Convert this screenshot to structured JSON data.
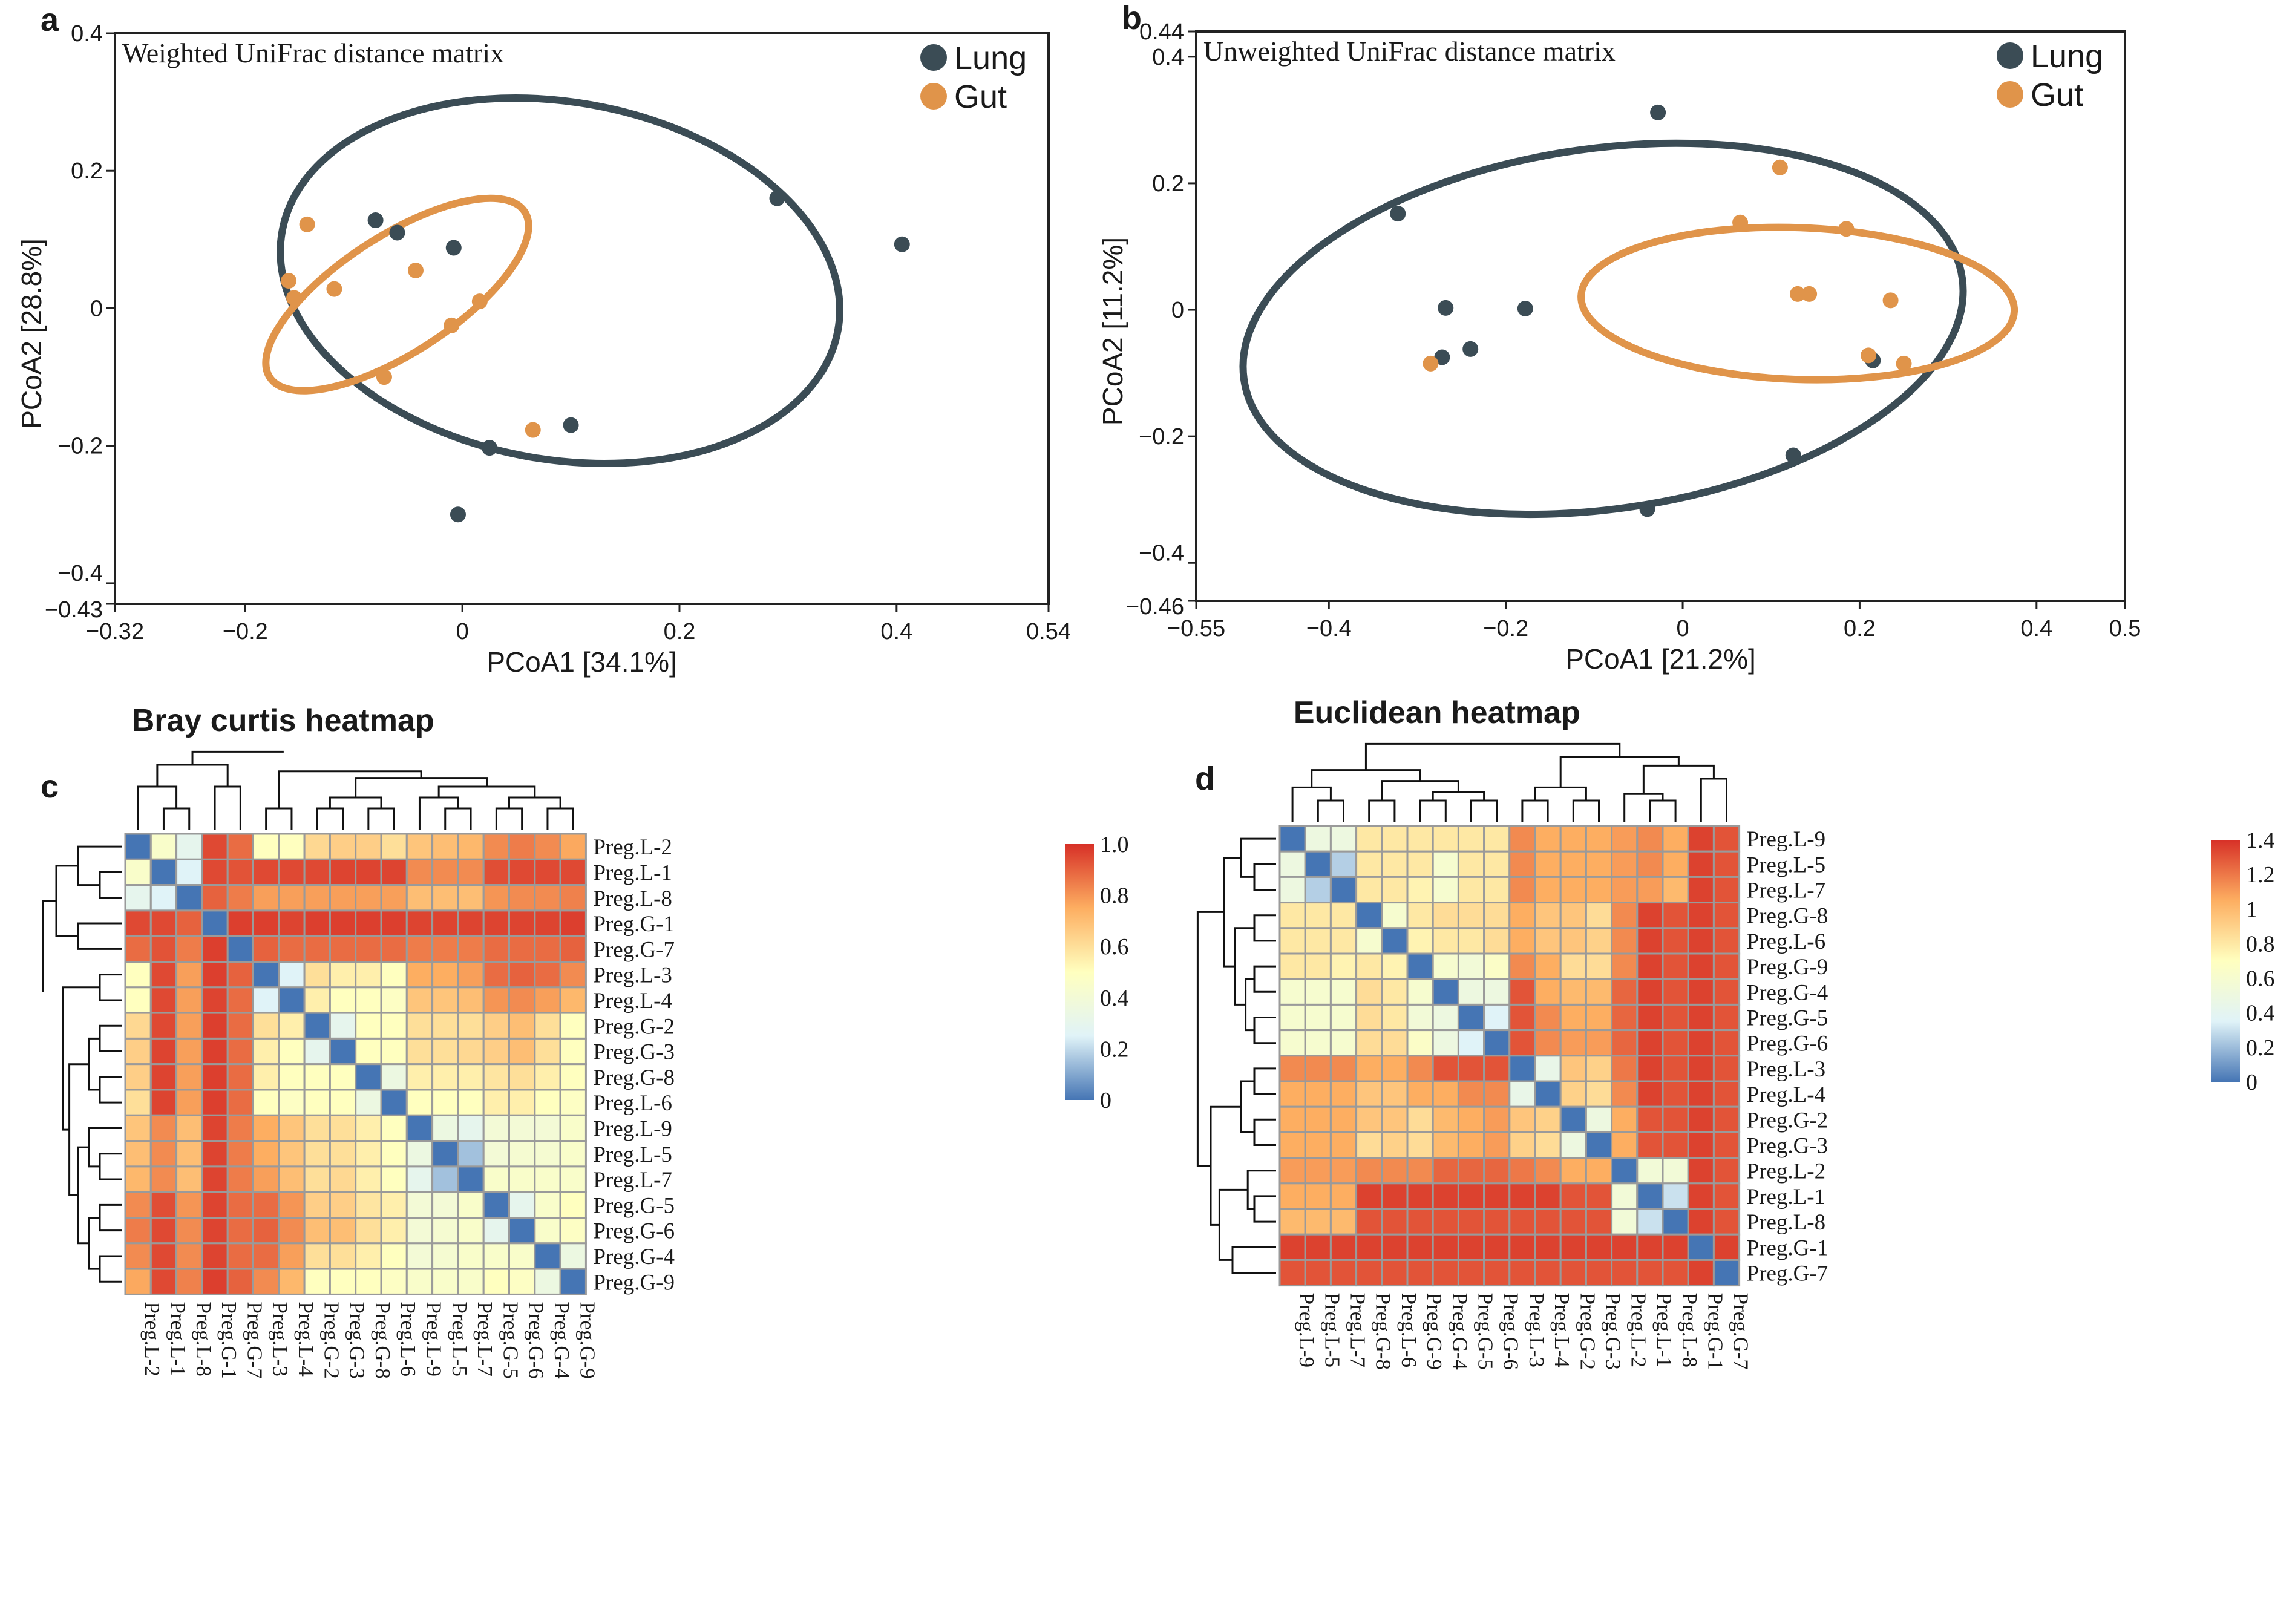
{
  "colors": {
    "lung": "#3b4c55",
    "gut": "#e0944a",
    "grid_line": "#9a9a9a",
    "scale": [
      "#4575b4",
      "#e0f3f8",
      "#ffffbf",
      "#fdae61",
      "#d73027"
    ]
  },
  "chart_data": [
    {
      "id": "a",
      "type": "scatter",
      "panel_letter": "a",
      "title": "Weighted UniFrac distance matrix",
      "xlabel": "PCoA1 [34.1%]",
      "ylabel": "PCoA2 [28.8%]",
      "xlim": [
        -0.32,
        0.54
      ],
      "ylim": [
        -0.43,
        0.4
      ],
      "xticks": [
        -0.2,
        0,
        0.2,
        0.4
      ],
      "yticks": [
        -0.4,
        -0.2,
        0,
        0.2
      ],
      "xtick_labels": [
        "−0.32",
        "−0.2",
        "0",
        "0.2",
        "0.4",
        "0.54"
      ],
      "ytick_labels": [
        "−0.43",
        "−0.4",
        "−0.2",
        "0",
        "0.2",
        "0.4"
      ],
      "legend": [
        "Lung",
        "Gut"
      ],
      "series": [
        {
          "name": "Lung",
          "points": [
            [
              -0.08,
              0.128
            ],
            [
              -0.06,
              0.11
            ],
            [
              -0.008,
              0.088
            ],
            [
              0.29,
              0.16
            ],
            [
              0.405,
              0.093
            ],
            [
              0.1,
              -0.17
            ],
            [
              0.025,
              -0.203
            ],
            [
              -0.004,
              -0.3
            ]
          ]
        },
        {
          "name": "Gut",
          "points": [
            [
              -0.143,
              0.122
            ],
            [
              -0.16,
              0.04
            ],
            [
              -0.155,
              0.015
            ],
            [
              -0.118,
              0.028
            ],
            [
              -0.043,
              0.055
            ],
            [
              0.016,
              0.01
            ],
            [
              -0.01,
              -0.025
            ],
            [
              -0.072,
              -0.1
            ],
            [
              0.065,
              -0.177
            ]
          ]
        }
      ],
      "ellipses": [
        {
          "name": "Lung",
          "cx": 0.09,
          "cy": 0.04,
          "rx": 0.26,
          "ry": 0.26,
          "angle": 10
        },
        {
          "name": "Gut",
          "cx": -0.06,
          "cy": 0.02,
          "rx": 0.14,
          "ry": 0.085,
          "angle": -33
        }
      ]
    },
    {
      "id": "b",
      "type": "scatter",
      "panel_letter": "b",
      "title": "Unweighted UniFrac distance matrix",
      "xlabel": "PCoA1 [21.2%]",
      "ylabel": "PCoA2 [11.2%]",
      "xlim": [
        -0.55,
        0.5
      ],
      "ylim": [
        -0.46,
        0.44
      ],
      "xticks": [
        -0.4,
        -0.2,
        0,
        0.2,
        0.4
      ],
      "yticks": [
        -0.4,
        -0.2,
        0,
        0.2,
        0.4
      ],
      "xtick_labels": [
        "−0.55",
        "−0.4",
        "−0.2",
        "0",
        "0.2",
        "0.4",
        "0.5"
      ],
      "ytick_labels": [
        "−0.46",
        "−0.4",
        "−0.2",
        "0",
        "0.2",
        "0.4",
        "0.44"
      ],
      "legend": [
        "Lung",
        "Gut"
      ],
      "series": [
        {
          "name": "Lung",
          "points": [
            [
              -0.028,
              0.312
            ],
            [
              -0.322,
              0.152
            ],
            [
              -0.268,
              0.003
            ],
            [
              -0.178,
              0.002
            ],
            [
              -0.24,
              -0.062
            ],
            [
              -0.272,
              -0.075
            ],
            [
              0.215,
              -0.08
            ],
            [
              0.125,
              -0.23
            ],
            [
              -0.04,
              -0.315
            ]
          ]
        },
        {
          "name": "Gut",
          "points": [
            [
              0.11,
              0.225
            ],
            [
              0.065,
              0.138
            ],
            [
              0.185,
              0.128
            ],
            [
              0.13,
              0.025
            ],
            [
              0.143,
              0.025
            ],
            [
              0.235,
              0.015
            ],
            [
              0.21,
              -0.072
            ],
            [
              0.25,
              -0.085
            ],
            [
              -0.285,
              -0.085
            ]
          ]
        }
      ],
      "ellipses": [
        {
          "name": "Lung",
          "cx": -0.09,
          "cy": -0.03,
          "rx": 0.41,
          "ry": 0.285,
          "angle": -8
        },
        {
          "name": "Gut",
          "cx": 0.13,
          "cy": 0.01,
          "rx": 0.245,
          "ry": 0.12,
          "angle": 2
        }
      ]
    },
    {
      "id": "c",
      "type": "heatmap",
      "panel_letter": "c",
      "title": "Bray curtis heatmap",
      "labels": [
        "Preg.L-2",
        "Preg.L-1",
        "Preg.L-8",
        "Preg.G-1",
        "Preg.G-7",
        "Preg.L-3",
        "Preg.L-4",
        "Preg.G-2",
        "Preg.G-3",
        "Preg.G-8",
        "Preg.L-6",
        "Preg.L-9",
        "Preg.L-5",
        "Preg.L-7",
        "Preg.G-5",
        "Preg.G-6",
        "Preg.G-4",
        "Preg.G-9"
      ],
      "vmin": 0,
      "vmax": 1.0,
      "colorbar_ticks": [
        "1.0",
        "0.8",
        "0.6",
        "0.4",
        "0.2",
        "0"
      ],
      "colorbar_values": [
        1.0,
        0.8,
        0.6,
        0.4,
        0.2,
        0
      ],
      "values": [
        [
          0,
          0.45,
          0.3,
          0.95,
          0.88,
          0.5,
          0.5,
          0.62,
          0.65,
          0.65,
          0.6,
          0.68,
          0.7,
          0.72,
          0.82,
          0.85,
          0.82,
          0.76
        ],
        [
          0.45,
          0,
          0.25,
          0.95,
          0.93,
          0.95,
          0.95,
          0.95,
          0.96,
          0.96,
          0.96,
          0.82,
          0.82,
          0.82,
          0.94,
          0.95,
          0.95,
          0.95
        ],
        [
          0.3,
          0.25,
          0,
          0.9,
          0.85,
          0.78,
          0.78,
          0.78,
          0.78,
          0.78,
          0.78,
          0.7,
          0.7,
          0.7,
          0.8,
          0.82,
          0.82,
          0.84
        ],
        [
          0.95,
          0.95,
          0.9,
          0,
          0.97,
          0.97,
          0.96,
          0.97,
          0.97,
          0.97,
          0.97,
          0.96,
          0.96,
          0.96,
          0.96,
          0.96,
          0.96,
          0.97
        ],
        [
          0.88,
          0.93,
          0.85,
          0.97,
          0,
          0.9,
          0.88,
          0.88,
          0.88,
          0.88,
          0.88,
          0.85,
          0.85,
          0.85,
          0.88,
          0.88,
          0.88,
          0.9
        ],
        [
          0.5,
          0.95,
          0.78,
          0.97,
          0.9,
          0,
          0.25,
          0.6,
          0.55,
          0.55,
          0.5,
          0.75,
          0.75,
          0.78,
          0.88,
          0.9,
          0.88,
          0.82
        ],
        [
          0.5,
          0.95,
          0.78,
          0.96,
          0.88,
          0.25,
          0,
          0.55,
          0.5,
          0.5,
          0.48,
          0.68,
          0.68,
          0.7,
          0.8,
          0.82,
          0.78,
          0.72
        ],
        [
          0.62,
          0.95,
          0.78,
          0.97,
          0.88,
          0.6,
          0.55,
          0,
          0.3,
          0.5,
          0.5,
          0.6,
          0.6,
          0.6,
          0.65,
          0.7,
          0.6,
          0.5
        ],
        [
          0.65,
          0.96,
          0.78,
          0.97,
          0.88,
          0.55,
          0.5,
          0.3,
          0,
          0.5,
          0.5,
          0.6,
          0.6,
          0.62,
          0.65,
          0.7,
          0.6,
          0.5
        ],
        [
          0.65,
          0.96,
          0.78,
          0.97,
          0.88,
          0.55,
          0.5,
          0.5,
          0.5,
          0,
          0.35,
          0.55,
          0.55,
          0.55,
          0.58,
          0.6,
          0.55,
          0.5
        ],
        [
          0.6,
          0.96,
          0.78,
          0.97,
          0.88,
          0.5,
          0.48,
          0.5,
          0.5,
          0.35,
          0,
          0.5,
          0.5,
          0.5,
          0.55,
          0.55,
          0.5,
          0.48
        ],
        [
          0.68,
          0.82,
          0.7,
          0.96,
          0.85,
          0.75,
          0.68,
          0.6,
          0.6,
          0.55,
          0.5,
          0,
          0.35,
          0.3,
          0.4,
          0.4,
          0.4,
          0.45
        ],
        [
          0.7,
          0.82,
          0.7,
          0.96,
          0.85,
          0.75,
          0.68,
          0.6,
          0.6,
          0.55,
          0.5,
          0.35,
          0,
          0.15,
          0.4,
          0.42,
          0.42,
          0.45
        ],
        [
          0.72,
          0.82,
          0.7,
          0.96,
          0.85,
          0.78,
          0.7,
          0.6,
          0.62,
          0.55,
          0.5,
          0.3,
          0.15,
          0,
          0.45,
          0.45,
          0.45,
          0.45
        ],
        [
          0.82,
          0.94,
          0.8,
          0.96,
          0.88,
          0.88,
          0.8,
          0.65,
          0.65,
          0.58,
          0.55,
          0.4,
          0.4,
          0.45,
          0,
          0.3,
          0.45,
          0.5
        ],
        [
          0.85,
          0.95,
          0.82,
          0.96,
          0.88,
          0.9,
          0.82,
          0.7,
          0.7,
          0.6,
          0.55,
          0.4,
          0.42,
          0.45,
          0.3,
          0,
          0.45,
          0.48
        ],
        [
          0.82,
          0.95,
          0.82,
          0.96,
          0.88,
          0.88,
          0.78,
          0.6,
          0.6,
          0.55,
          0.5,
          0.4,
          0.42,
          0.45,
          0.45,
          0.45,
          0,
          0.35
        ],
        [
          0.76,
          0.95,
          0.84,
          0.97,
          0.9,
          0.82,
          0.72,
          0.5,
          0.5,
          0.5,
          0.48,
          0.45,
          0.45,
          0.45,
          0.5,
          0.48,
          0.35,
          0
        ]
      ]
    },
    {
      "id": "d",
      "type": "heatmap",
      "panel_letter": "d",
      "title": "Euclidean heatmap",
      "labels": [
        "Preg.L-9",
        "Preg.L-5",
        "Preg.L-7",
        "Preg.G-8",
        "Preg.L-6",
        "Preg.G-9",
        "Preg.G-4",
        "Preg.G-5",
        "Preg.G-6",
        "Preg.L-3",
        "Preg.L-4",
        "Preg.G-2",
        "Preg.G-3",
        "Preg.L-2",
        "Preg.L-1",
        "Preg.L-8",
        "Preg.G-1",
        "Preg.G-7"
      ],
      "vmin": 0,
      "vmax": 1.4,
      "colorbar_ticks": [
        "1.4",
        "1.2",
        "1",
        "0.8",
        "0.6",
        "0.4",
        "0.2",
        "0"
      ],
      "colorbar_values": [
        1.4,
        1.2,
        1.0,
        0.8,
        0.6,
        0.4,
        0.2,
        0
      ],
      "values": [
        [
          0,
          0.5,
          0.5,
          0.8,
          0.8,
          0.8,
          0.8,
          0.8,
          0.8,
          1.15,
          1.05,
          1.05,
          1.05,
          1.1,
          1.15,
          1.05,
          1.35,
          1.3
        ],
        [
          0.5,
          0,
          0.25,
          0.8,
          0.8,
          0.8,
          0.6,
          0.8,
          0.8,
          1.15,
          1.05,
          1.05,
          1.05,
          1.1,
          1.15,
          1.05,
          1.35,
          1.3
        ],
        [
          0.5,
          0.25,
          0,
          0.8,
          0.8,
          0.75,
          0.6,
          0.8,
          0.8,
          1.15,
          1.05,
          1.05,
          1.05,
          1.1,
          1.1,
          1.0,
          1.35,
          1.3
        ],
        [
          0.8,
          0.8,
          0.8,
          0,
          0.6,
          0.8,
          0.85,
          0.85,
          0.85,
          1.05,
          0.95,
          0.95,
          0.85,
          1.15,
          1.35,
          1.3,
          1.35,
          1.3
        ],
        [
          0.8,
          0.8,
          0.8,
          0.6,
          0,
          0.75,
          0.8,
          0.8,
          0.85,
          1.05,
          0.95,
          0.95,
          0.9,
          1.15,
          1.35,
          1.3,
          1.35,
          1.3
        ],
        [
          0.8,
          0.8,
          0.75,
          0.8,
          0.75,
          0,
          0.6,
          0.55,
          0.65,
          1.15,
          1.05,
          0.85,
          0.85,
          1.15,
          1.35,
          1.3,
          1.35,
          1.3
        ],
        [
          0.6,
          0.6,
          0.6,
          0.85,
          0.8,
          0.6,
          0,
          0.5,
          0.5,
          1.3,
          1.05,
          1.0,
          1.0,
          1.25,
          1.35,
          1.3,
          1.35,
          1.3
        ],
        [
          0.6,
          0.6,
          0.6,
          0.85,
          0.8,
          0.55,
          0.5,
          0,
          0.35,
          1.3,
          1.15,
          1.05,
          1.05,
          1.25,
          1.35,
          1.3,
          1.35,
          1.3
        ],
        [
          0.6,
          0.6,
          0.6,
          0.85,
          0.85,
          0.65,
          0.5,
          0.35,
          0,
          1.3,
          1.15,
          1.1,
          1.1,
          1.25,
          1.35,
          1.3,
          1.35,
          1.3
        ],
        [
          1.15,
          1.15,
          1.15,
          1.05,
          1.05,
          1.15,
          1.3,
          1.3,
          1.3,
          0,
          0.45,
          0.95,
          0.9,
          1.2,
          1.35,
          1.3,
          1.35,
          1.3
        ],
        [
          1.05,
          1.05,
          1.05,
          0.95,
          0.95,
          1.05,
          1.05,
          1.15,
          1.15,
          0.45,
          0,
          0.9,
          0.85,
          1.15,
          1.35,
          1.3,
          1.35,
          1.3
        ],
        [
          1.05,
          1.05,
          1.05,
          0.95,
          0.95,
          0.85,
          1.0,
          1.05,
          1.1,
          0.95,
          0.9,
          0,
          0.5,
          1.05,
          1.3,
          1.3,
          1.35,
          1.3
        ],
        [
          1.05,
          1.05,
          1.05,
          0.85,
          0.9,
          0.85,
          1.0,
          1.05,
          1.1,
          0.9,
          0.85,
          0.5,
          0,
          1.05,
          1.3,
          1.3,
          1.35,
          1.3
        ],
        [
          1.1,
          1.1,
          1.1,
          1.15,
          1.15,
          1.15,
          1.25,
          1.25,
          1.25,
          1.2,
          1.15,
          1.05,
          1.05,
          0,
          0.55,
          0.55,
          1.35,
          1.3
        ],
        [
          1.05,
          1.05,
          1.05,
          1.35,
          1.35,
          1.35,
          1.35,
          1.35,
          1.35,
          1.35,
          1.35,
          1.3,
          1.3,
          0.55,
          0,
          0.3,
          1.35,
          1.3
        ],
        [
          1.0,
          1.0,
          1.0,
          1.3,
          1.3,
          1.3,
          1.3,
          1.3,
          1.3,
          1.3,
          1.3,
          1.3,
          1.3,
          0.55,
          0.3,
          0,
          1.35,
          1.3
        ],
        [
          1.35,
          1.35,
          1.35,
          1.35,
          1.35,
          1.35,
          1.35,
          1.35,
          1.35,
          1.35,
          1.35,
          1.35,
          1.35,
          1.35,
          1.35,
          1.35,
          0,
          1.35
        ],
        [
          1.3,
          1.3,
          1.3,
          1.3,
          1.3,
          1.3,
          1.3,
          1.3,
          1.3,
          1.3,
          1.3,
          1.3,
          1.3,
          1.3,
          1.3,
          1.3,
          1.35,
          0
        ]
      ]
    }
  ]
}
